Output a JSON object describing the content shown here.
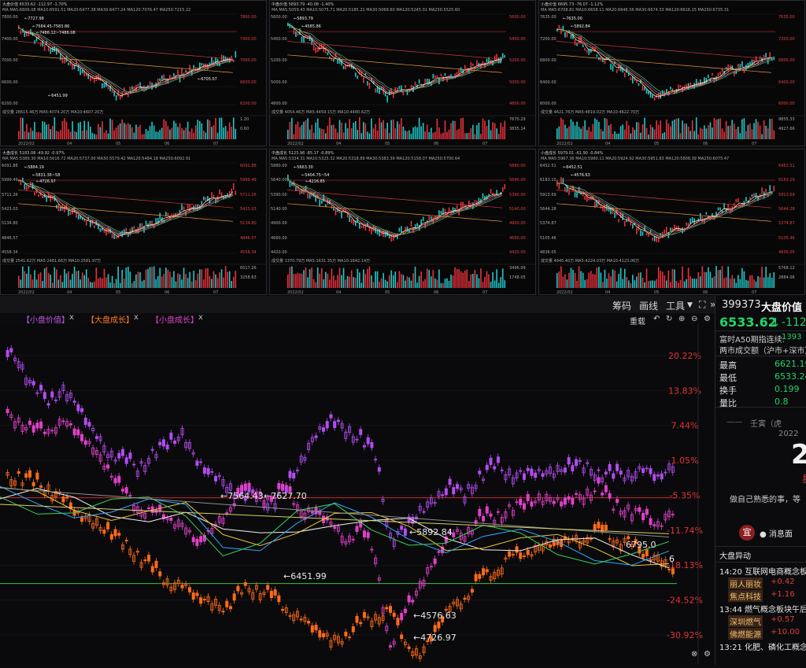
{
  "mini_panels": [
    {
      "header": "大盘价值 6533.62 -112.97 -1.70%",
      "ma": "MA MA5:6606.08 MA10:6591.51 MA20:6477.38 MA30:6477.24 MA120:7076.47 MA250:7215.22",
      "vol_label": "成交量 28615.46万 MA5:4074.20万 MA10:4607.20万",
      "dates": [
        "2022/02",
        "04",
        "05",
        "06",
        "07"
      ],
      "price_labels": [
        "7800.00",
        "7400.00",
        "7000.00",
        "6600.00",
        "6200.00"
      ],
      "vol_labels": [
        "1.20",
        "0.60"
      ],
      "annot": [
        "7727.98",
        "7584.45-7583.86",
        "7486.12~7486.08",
        "6451.99",
        "6705.07"
      ],
      "color": "#d8d8d8"
    },
    {
      "header": "中盘价值 5893.79 -40.08 -1.40%",
      "ma": "MA MA5:5059.43 MA10:5075.71 MA20:5185.21 MA30:5068.60 MA120:5245.01 MA250:5525.60",
      "vol_label": "成交量 4054.46万 MA5:4459.15万 MA10:4480.62万",
      "dates": [
        "2022/02",
        "04",
        "05",
        "06",
        "07"
      ],
      "price_labels": [
        "5600.00",
        "5400.00",
        "5200.00",
        "5000.00",
        "4800.00"
      ],
      "vol_labels": [
        "7670.29",
        "3835.14"
      ],
      "annot": [
        "5893.79",
        "4585.86"
      ],
      "color": "#d8d8d8"
    },
    {
      "header": "小盘价值 6695.73 -76.07 -1.12%",
      "ma": "MA MA5:6708.81 MA10:6658.11 MA20:6646.56 MA30:6674.33 MA120:6616.15 MA250:6735.31",
      "vol_label": "成交量 4621.76万 MA5:4819.02万 MA10:4622.70万",
      "dates": [
        "2022/02",
        "04",
        "05",
        "06",
        "07"
      ],
      "price_labels": [
        "7635.00",
        "7200.00",
        "6800.00",
        "6400.00",
        "6000.00"
      ],
      "vol_labels": [
        "9855.33",
        "4927.66"
      ],
      "annot": [
        "7635.00",
        "5892.84"
      ],
      "color": "#d8d8d8"
    },
    {
      "header": "大盘成长 5183.08 -49.92 -0.97%",
      "ma": "MA MA5:5389.30 MA10:5616.72 MA20:5737.00 MA30:5579.42 MA120:5484.18 MA250:6092.91",
      "vol_label": "成交量 2541.62万 MA5:2481.66万 MA10:2581.97万",
      "dates": [
        "2022/02",
        "04",
        "05",
        "06",
        "07"
      ],
      "price_labels": [
        "6091.88",
        "5999.49",
        "5711.26",
        "5423.03",
        "5134.80",
        "4846.57",
        "4558.34"
      ],
      "vol_labels": [
        "6517.26",
        "3258.63"
      ],
      "annot": [
        "5884.19",
        "5831.36~58",
        "4726.97"
      ],
      "color": "#d8d8d8"
    },
    {
      "header": "中盘成长 5123.96 -85.17 -0.89%",
      "ma": "MA MA5:5334.31 MA10:5325.32 MA20:5318.89 MA30:5383.39 MA120:5158.07 MA250:5700.64",
      "vol_label": "成交量 1370.79万 MA5:1631.35万 MA10:1642.14万",
      "dates": [
        "2022/02",
        "04",
        "05",
        "06",
        "07"
      ],
      "price_labels": [
        "5880.00",
        "5640.00",
        "5390.00",
        "5140.00",
        "4900.00",
        "4660.00",
        "4420.00"
      ],
      "vol_labels": [
        "3496.09",
        "1748.05"
      ],
      "annot": [
        "5663.30",
        "5404.75~54",
        "4216.85"
      ],
      "color": "#d8d8d8"
    },
    {
      "header": "小盘成长 5979.01 -61.90 -0.84%",
      "ma": "MA MA5:5967.36 MA10:5980.11 MA20:5924.92 MA30:5951.83 MA120:5808.39 MA250:6075.47",
      "vol_label": "成交量 4945.40万 MA5:4224.03万 MA10:4123.06万",
      "dates": [
        "2022/02",
        "04",
        "05",
        "06",
        "07"
      ],
      "price_labels": [
        "6452.51",
        "6183.10",
        "5913.69",
        "5644.28",
        "5374.87",
        "5105.46",
        "4836.05"
      ],
      "vol_labels": [
        "5768.12",
        "2884.06"
      ],
      "annot": [
        "6452.51",
        "4576.63"
      ],
      "color": "#d8d8d8"
    }
  ],
  "toolbar": {
    "chouma": "筹码",
    "huaxian": "画线",
    "gongju": "工具",
    "chevron": "»",
    "index_code": "399373",
    "index_name": "大盘价值",
    "expand": "⛶"
  },
  "tabs": [
    {
      "label": "【小盘价值】",
      "color": "#c455e6",
      "close": "x"
    },
    {
      "label": "【大盘成长】",
      "color": "#ff7a22",
      "close": "x"
    },
    {
      "label": "【小盘成长】",
      "color": "#e040c8",
      "close": "x"
    }
  ],
  "chart_controls": {
    "overlay": "重载",
    "undo": "↶",
    "refresh": "↻",
    "zoom_in": "⊕",
    "zoom_out": "⊖",
    "settings": "⚙"
  },
  "chart_data": {
    "type": "line",
    "y_axis_labels": [
      "20.22%",
      "13.83%",
      "7.44%",
      "1.05%",
      "-5.35%",
      "-11.74%",
      "-18.13%",
      "-24.52%",
      "-30.92%"
    ],
    "annotations": [
      "7564.43",
      "7627.70",
      "5892.84",
      "6451.99",
      "4576.63",
      "4726.97",
      "6795.0",
      "6"
    ],
    "series": [
      {
        "color": "#b24cf0",
        "values": [
          20,
          14,
          12,
          14,
          11,
          6,
          3,
          1,
          0,
          2,
          4,
          6,
          1,
          -2,
          -3,
          -6,
          -5,
          -7,
          -4,
          1,
          6,
          8,
          7,
          5,
          2,
          -13,
          -12,
          -8,
          -6,
          -4,
          -5,
          -2,
          0,
          -1,
          -2,
          -1,
          -1,
          0,
          0,
          -1,
          -2,
          -1,
          -1,
          -2,
          0
        ]
      },
      {
        "color": "#e040c8",
        "values": [
          9,
          6,
          7,
          8,
          6,
          3,
          0,
          -5,
          -7,
          -9,
          -9,
          -11,
          -14,
          -12,
          -8,
          -5,
          -4,
          -7,
          -3,
          -9,
          -8,
          -11,
          -13,
          -12,
          -16,
          -34,
          -26,
          -22,
          -17,
          -13,
          -12,
          -10,
          -9,
          -8,
          -7,
          -6,
          -6,
          -7,
          -5,
          -4,
          -7,
          -8,
          -9,
          -11,
          -8
        ]
      },
      {
        "color": "#ff6a1a",
        "values": [
          -2,
          -3,
          -4,
          -6,
          -9,
          -10,
          -12,
          -14,
          -16,
          -19,
          -21,
          -22,
          -24,
          -25,
          -26,
          -23,
          -22,
          -24,
          -26,
          -28,
          -30,
          -32,
          -31,
          -29,
          -27,
          -27,
          -32,
          -35,
          -30,
          -26,
          -24,
          -21,
          -19,
          -17,
          -16,
          -15,
          -14,
          -14,
          -13,
          -12,
          -13,
          -14,
          -16,
          -17,
          -19
        ]
      }
    ]
  },
  "side": {
    "price": "6533.62",
    "arrow": "↓",
    "change": "-112.",
    "a50_label": "富时A50期指连续:",
    "a50_value": "1393",
    "turnover_label": "两市成交额（沪市+深市）",
    "rows": [
      {
        "k": "最高",
        "v": "6621.19"
      },
      {
        "k": "最低",
        "v": "6533.24"
      },
      {
        "k": "换手",
        "v": "0.199"
      },
      {
        "k": "量比",
        "v": "0.8"
      }
    ],
    "almanac_label": "壬寅（虎",
    "year": "2022",
    "big_digit": "2",
    "red_char": "星",
    "motto": "做自己熟悉的事，等",
    "yi": "宜",
    "news_circle": "消息面",
    "section": "大盘异动",
    "events": [
      {
        "time": "14:20",
        "text": "互联网电商概念板"
      },
      {
        "time": "13:44",
        "text": "燃气概念板块午后"
      },
      {
        "time": "13:21",
        "text": "化肥、磷化工概念"
      }
    ],
    "stocks": [
      {
        "name": "丽人丽妆",
        "chg": "+0.42"
      },
      {
        "name": "焦点科技",
        "chg": "+1.16"
      },
      {
        "name": "深圳燃气",
        "chg": "+0.57"
      },
      {
        "name": "佛燃能源",
        "chg": "+10.00"
      }
    ]
  }
}
